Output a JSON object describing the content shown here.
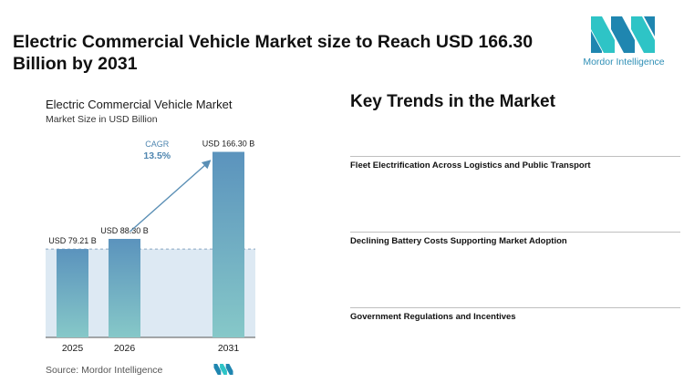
{
  "header": {
    "headline": "Electric Commercial Vehicle Market size to Reach USD 166.30 Billion by 2031",
    "logo_text": "Mordor Intelligence"
  },
  "chart": {
    "title": "Electric Commercial Vehicle Market",
    "subtitle": "Market Size in USD Billion",
    "cagr_label": "CAGR",
    "cagr_value": "13.5%",
    "source": "Source: Mordor Intelligence"
  },
  "chart_data": {
    "type": "bar",
    "title": "Electric Commercial Vehicle Market",
    "ylabel": "Market Size in USD Billion",
    "categories": [
      "2025",
      "2026",
      "2031"
    ],
    "values": [
      79.21,
      88.3,
      166.3
    ],
    "data_labels": [
      "USD 79.21 B",
      "USD 88.30 B",
      "USD 166.30 B"
    ],
    "ylim": [
      0,
      170
    ],
    "annotation": {
      "label": "CAGR",
      "value": "13.5%",
      "from": "2026",
      "to": "2031"
    },
    "grid": false,
    "colors": {
      "bar_top": "#5b93bd",
      "bar_bottom": "#86c8c8",
      "band": "#dde9f3",
      "arrow": "#5a8fb5",
      "cagr_text": "#4f86b0"
    }
  },
  "trends": {
    "title": "Key Trends in the Market",
    "items": [
      {
        "label": "Fleet Electrification Across Logistics and Public Transport"
      },
      {
        "label": "Declining Battery Costs Supporting Market Adoption"
      },
      {
        "label": "Government Regulations and Incentives"
      }
    ]
  }
}
